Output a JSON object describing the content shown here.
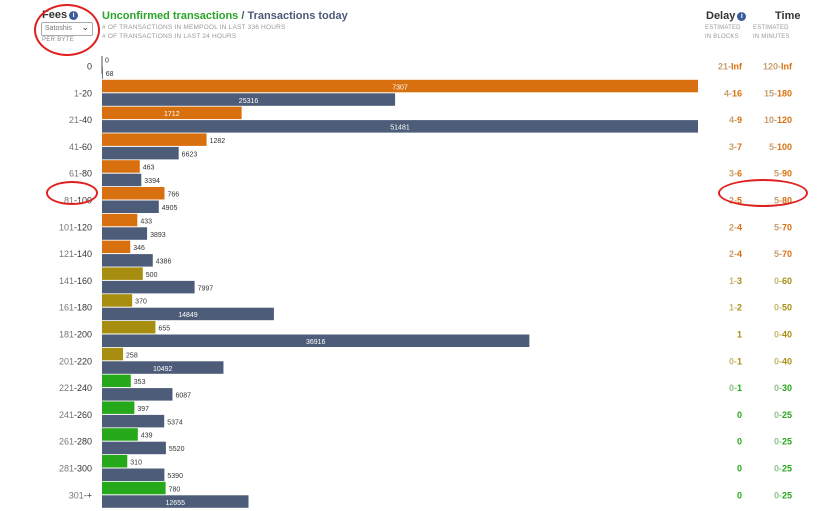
{
  "header": {
    "fees_label": "Fees",
    "unit_select_value": "Satoshis",
    "per_byte_label": "PER BYTE",
    "title_unconfirmed": "Unconfirmed transactions",
    "title_separator": " / ",
    "title_today": "Transactions today",
    "subtitle_mempool": "# OF TRANSACTIONS IN MEMPOOL IN LAST 336 HOURS",
    "subtitle_24h": "# OF TRANSACTIONS IN LAST 24 HOURS",
    "delay_label": "Delay",
    "delay_sub_1": "ESTIMATED",
    "delay_sub_2": "IN BLOCKS",
    "time_label": "Time",
    "time_sub_1": "ESTIMATED",
    "time_sub_2": "IN MINUTES",
    "info_glyph": "i"
  },
  "colors": {
    "mempool_red": "#d9700f",
    "mempool_yellow": "#a88e10",
    "mempool_green": "#25a81a",
    "today": "#4d5c78",
    "est_red_dim": "#c8a070",
    "est_red": "#d9700f",
    "est_yellow_dim": "#c8b870",
    "est_yellow": "#a88e10",
    "est_green_dim": "#8fc48f",
    "est_green": "#25a81a"
  },
  "chart_data": {
    "type": "bar",
    "orientation": "horizontal",
    "series": [
      {
        "name": "Unconfirmed transactions",
        "values": [
          0,
          7307,
          1712,
          1282,
          463,
          766,
          433,
          346,
          500,
          370,
          655,
          258,
          353,
          397,
          439,
          310,
          780
        ]
      },
      {
        "name": "Transactions today",
        "values": [
          68,
          25316,
          51481,
          6623,
          3394,
          4905,
          3893,
          4386,
          7997,
          14849,
          36916,
          10492,
          6087,
          5374,
          5520,
          5390,
          12655
        ]
      }
    ],
    "rows": [
      {
        "range_lo": "",
        "range_hi": "0",
        "level": "red",
        "delay_lo": "21",
        "delay_hi": "Inf",
        "time_lo": "120",
        "time_hi": "Inf"
      },
      {
        "range_lo": "1",
        "range_hi": "20",
        "level": "red",
        "delay_lo": "4",
        "delay_hi": "16",
        "time_lo": "15",
        "time_hi": "180"
      },
      {
        "range_lo": "21",
        "range_hi": "40",
        "level": "red",
        "delay_lo": "4",
        "delay_hi": "9",
        "time_lo": "10",
        "time_hi": "120"
      },
      {
        "range_lo": "41",
        "range_hi": "60",
        "level": "red",
        "delay_lo": "3",
        "delay_hi": "7",
        "time_lo": "5",
        "time_hi": "100"
      },
      {
        "range_lo": "61",
        "range_hi": "80",
        "level": "red",
        "delay_lo": "3",
        "delay_hi": "6",
        "time_lo": "5",
        "time_hi": "90"
      },
      {
        "range_lo": "81",
        "range_hi": "100",
        "level": "red",
        "delay_lo": "2",
        "delay_hi": "5",
        "time_lo": "5",
        "time_hi": "80"
      },
      {
        "range_lo": "101",
        "range_hi": "120",
        "level": "red",
        "delay_lo": "2",
        "delay_hi": "4",
        "time_lo": "5",
        "time_hi": "70"
      },
      {
        "range_lo": "121",
        "range_hi": "140",
        "level": "red",
        "delay_lo": "2",
        "delay_hi": "4",
        "time_lo": "5",
        "time_hi": "70"
      },
      {
        "range_lo": "141",
        "range_hi": "160",
        "level": "yellow",
        "delay_lo": "1",
        "delay_hi": "3",
        "time_lo": "0",
        "time_hi": "60"
      },
      {
        "range_lo": "161",
        "range_hi": "180",
        "level": "yellow",
        "delay_lo": "1",
        "delay_hi": "2",
        "time_lo": "0",
        "time_hi": "50"
      },
      {
        "range_lo": "181",
        "range_hi": "200",
        "level": "yellow",
        "delay_lo": "",
        "delay_hi": "1",
        "time_lo": "0",
        "time_hi": "40"
      },
      {
        "range_lo": "201",
        "range_hi": "220",
        "level": "yellow",
        "delay_lo": "0",
        "delay_hi": "1",
        "time_lo": "0",
        "time_hi": "40"
      },
      {
        "range_lo": "221",
        "range_hi": "240",
        "level": "green",
        "delay_lo": "0",
        "delay_hi": "1",
        "time_lo": "0",
        "time_hi": "30"
      },
      {
        "range_lo": "241",
        "range_hi": "260",
        "level": "green",
        "delay_lo": "",
        "delay_hi": "0",
        "time_lo": "0",
        "time_hi": "25"
      },
      {
        "range_lo": "261",
        "range_hi": "280",
        "level": "green",
        "delay_lo": "",
        "delay_hi": "0",
        "time_lo": "0",
        "time_hi": "25"
      },
      {
        "range_lo": "281",
        "range_hi": "300",
        "level": "green",
        "delay_lo": "",
        "delay_hi": "0",
        "time_lo": "0",
        "time_hi": "25"
      },
      {
        "range_lo": "301",
        "range_hi": "+",
        "level": "green",
        "delay_lo": "",
        "delay_hi": "0",
        "time_lo": "0",
        "time_hi": "25"
      }
    ]
  }
}
